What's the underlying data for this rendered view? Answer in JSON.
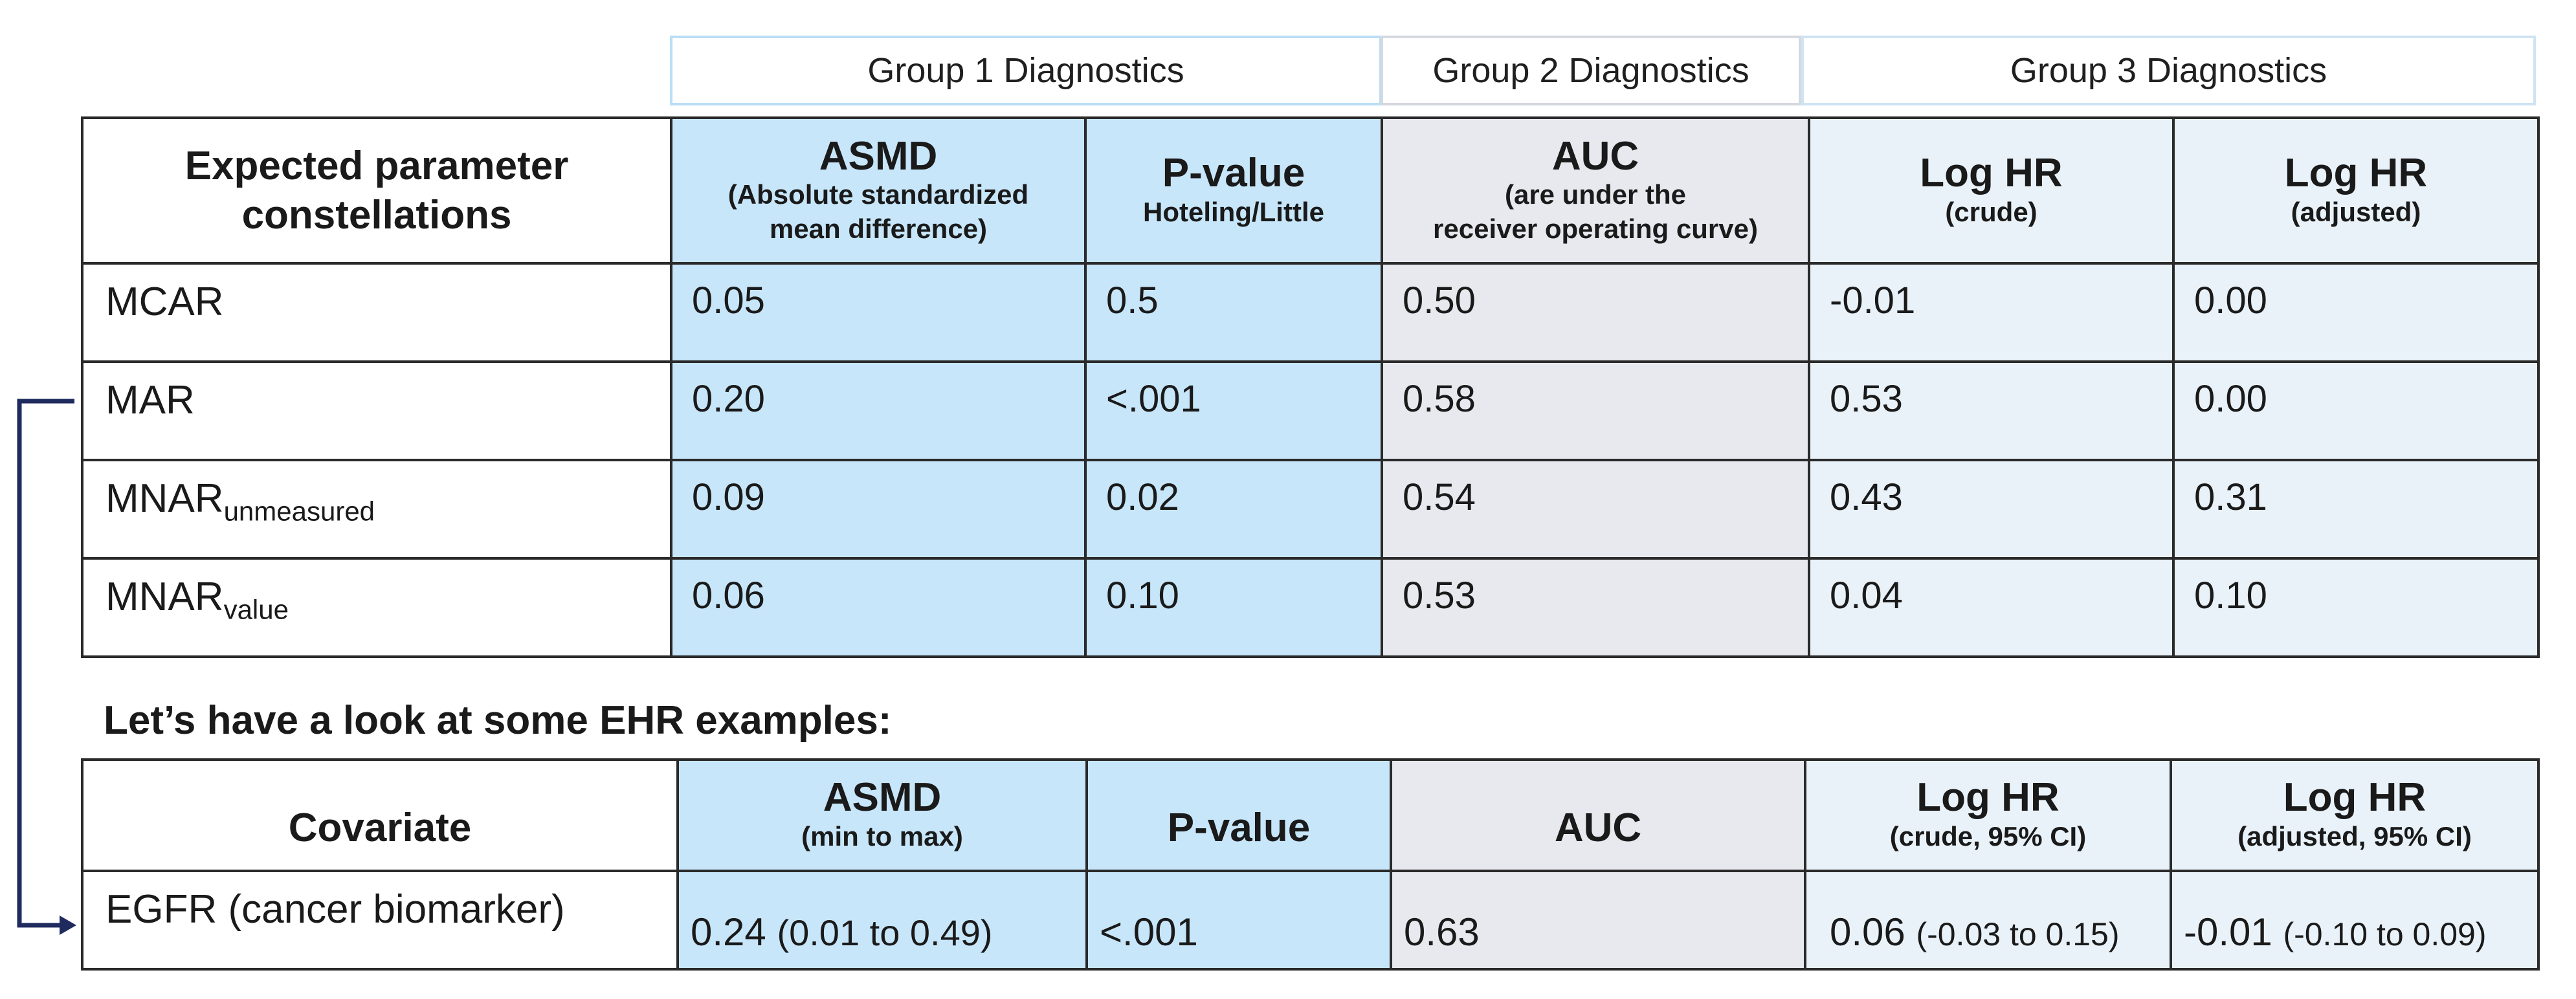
{
  "groups": [
    {
      "label": "Group 1 Diagnostics"
    },
    {
      "label": "Group 2 Diagnostics"
    },
    {
      "label": "Group 3 Diagnostics"
    }
  ],
  "top_table": {
    "corner_header": [
      "Expected parameter",
      "constellations"
    ],
    "columns": [
      {
        "main": "ASMD",
        "sub": [
          "(Absolute standardized",
          "mean difference)"
        ]
      },
      {
        "main": "P-value",
        "sub": [
          "Hoteling/Little"
        ]
      },
      {
        "main": "AUC",
        "sub": [
          "(are under the",
          "receiver operating curve)"
        ]
      },
      {
        "main": "Log HR",
        "sub": [
          "(crude)"
        ]
      },
      {
        "main": "Log HR",
        "sub": [
          "(adjusted)"
        ]
      }
    ],
    "rows": [
      {
        "label": "MCAR",
        "label_sub": "",
        "values": [
          "0.05",
          "0.5",
          "0.50",
          "-0.01",
          "0.00"
        ]
      },
      {
        "label": "MAR",
        "label_sub": "",
        "values": [
          "0.20",
          "<.001",
          "0.58",
          "0.53",
          "0.00"
        ]
      },
      {
        "label": "MNAR",
        "label_sub": "unmeasured",
        "values": [
          "0.09",
          "0.02",
          "0.54",
          "0.43",
          "0.31"
        ]
      },
      {
        "label": "MNAR",
        "label_sub": "value",
        "values": [
          "0.06",
          "0.10",
          "0.53",
          "0.04",
          "0.10"
        ]
      }
    ]
  },
  "section_title": "Let’s have a look at some EHR examples:",
  "bottom_table": {
    "columns": [
      {
        "main": "Covariate",
        "sub": ""
      },
      {
        "main": "ASMD",
        "sub": "(min to max)"
      },
      {
        "main": "P-value",
        "sub": ""
      },
      {
        "main": "AUC",
        "sub": ""
      },
      {
        "main": "Log HR",
        "sub": "(crude, 95% CI)"
      },
      {
        "main": "Log HR",
        "sub": "(adjusted, 95% CI)"
      }
    ],
    "rows": [
      {
        "label": "EGFR (cancer biomarker)",
        "asmd": {
          "value": "0.24",
          "range": "(0.01 to 0.49)"
        },
        "pvalue": "<.001",
        "auc": "0.63",
        "loghr_crude": {
          "value": "0.06",
          "range": "(-0.03 to 0.15)"
        },
        "loghr_adjusted": {
          "value": "-0.01",
          "range": "(-0.10 to 0.09)"
        }
      }
    ]
  },
  "colors": {
    "group1_fill": "#c7e6fa",
    "group2_fill": "#e8e9ee",
    "group3_fill": "#e9f2f9",
    "connector": "#1f2b5e"
  }
}
